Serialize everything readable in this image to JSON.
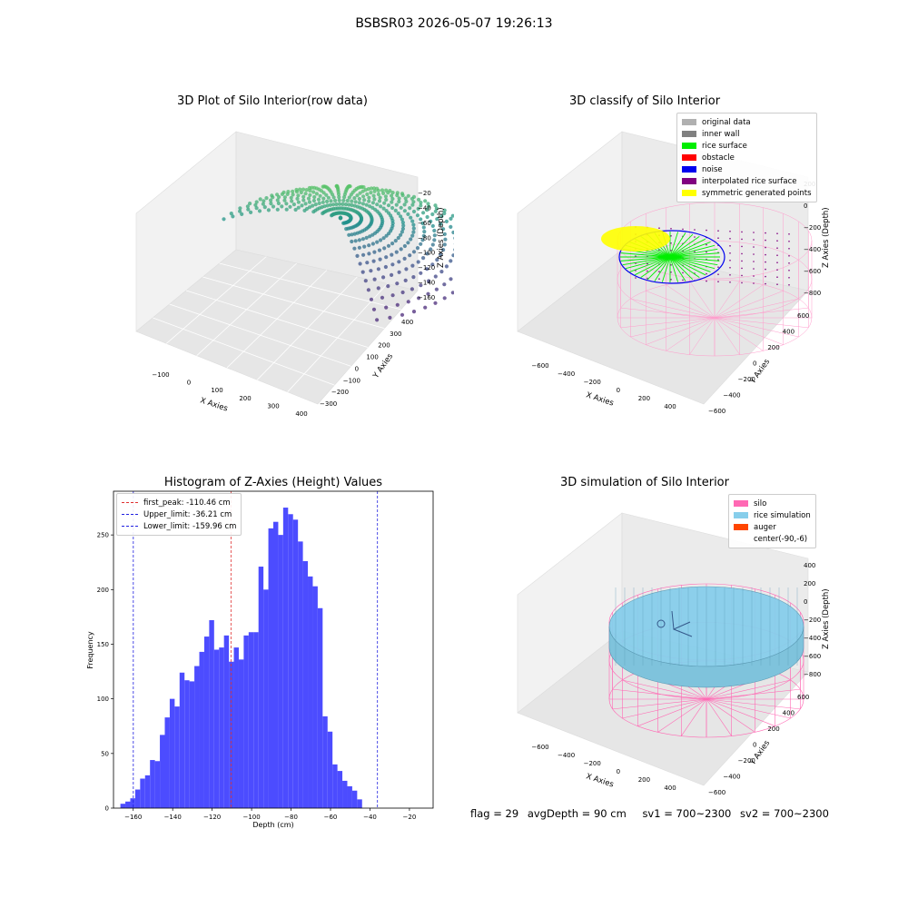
{
  "suptitle": "BSBSR03 2026-05-07 19:26:13",
  "colors": {
    "hist_bar": "#4c4cff",
    "first_peak": "#e03030",
    "limit": "#2020e0",
    "silo": "#ff69b4",
    "rice_sim": "#87ceeb",
    "auger": "#ff4500",
    "raw_low": "#4b2a7a",
    "raw_high": "#e8e820"
  },
  "panel_raw": {
    "title": "3D Plot of Silo Interior(row data)",
    "xlabel": "X Axies",
    "ylabel": "Y Axies",
    "zlabel": "Z Axies (Depth)",
    "xticks": [
      "−100",
      "0",
      "100",
      "200",
      "300",
      "400"
    ],
    "yticks": [
      "−300",
      "−200",
      "−100",
      "0",
      "100",
      "200",
      "300",
      "400"
    ],
    "zticks": [
      "−20",
      "−40",
      "−60",
      "−80",
      "−100",
      "−120",
      "−140",
      "−160"
    ]
  },
  "panel_classify": {
    "title": "3D classify of Silo Interior",
    "xlabel": "X Axies",
    "ylabel": "Y Axies",
    "zlabel": "Z Axies (Depth)",
    "xticks": [
      "−600",
      "−400",
      "−200",
      "0",
      "200",
      "400"
    ],
    "yticks": [
      "−600",
      "−400",
      "−200",
      "0",
      "200",
      "400",
      "600"
    ],
    "zticks": [
      "200",
      "0",
      "−200",
      "−400",
      "−600",
      "−800"
    ],
    "legend": [
      {
        "label": "original data",
        "color": "#b0b0b0"
      },
      {
        "label": "inner wall",
        "color": "#808080"
      },
      {
        "label": "rice surface",
        "color": "#00ee00"
      },
      {
        "label": "obstacle",
        "color": "#ff0000"
      },
      {
        "label": "noise",
        "color": "#0000ee"
      },
      {
        "label": "interpolated rice surface",
        "color": "#800080"
      },
      {
        "label": "symmetric generated points",
        "color": "#ffff00"
      }
    ]
  },
  "panel_sim": {
    "title": "3D simulation of Silo Interior",
    "xlabel": "X Axies",
    "ylabel": "Y Axies",
    "zlabel": "Z Axies (Depth)",
    "xticks": [
      "−600",
      "−400",
      "−200",
      "0",
      "200",
      "400"
    ],
    "yticks": [
      "−600",
      "−400",
      "−200",
      "0",
      "200",
      "400",
      "600"
    ],
    "zticks": [
      "400",
      "200",
      "0",
      "−200",
      "−400",
      "−600",
      "−800"
    ],
    "legend": [
      {
        "label": "silo",
        "color": "#ff69b4"
      },
      {
        "label": "rice simulation",
        "color": "#87ceeb"
      },
      {
        "label": "auger",
        "color": "#ff4500"
      },
      {
        "label": "center(-90,-6)",
        "color": ""
      }
    ]
  },
  "chart_data": {
    "type": "bar",
    "title": "Histogram of Z-Axies (Height) Values",
    "xlabel": "Depth (cm)",
    "ylabel": "Frequency",
    "xlim": [
      -170,
      -8
    ],
    "ylim": [
      0,
      290
    ],
    "xticks": [
      -160,
      -140,
      -120,
      -100,
      -80,
      -60,
      -40,
      -20
    ],
    "yticks": [
      0,
      50,
      100,
      150,
      200,
      250
    ],
    "xtick_labels": [
      "−160",
      "−140",
      "−120",
      "−100",
      "−80",
      "−60",
      "−40",
      "−20"
    ],
    "ytick_labels": [
      "0",
      "50",
      "100",
      "150",
      "200",
      "250"
    ],
    "bin_start": -166.5,
    "bin_width": 2.5,
    "values": [
      4,
      6,
      9,
      17,
      27,
      30,
      44,
      43,
      67,
      83,
      100,
      93,
      124,
      117,
      116,
      130,
      143,
      157,
      172,
      145,
      147,
      158,
      134,
      147,
      136,
      158,
      161,
      161,
      221,
      200,
      256,
      262,
      250,
      275,
      269,
      264,
      244,
      226,
      212,
      203,
      183,
      84,
      70,
      40,
      34,
      25,
      20,
      16,
      8
    ],
    "lines": [
      {
        "name": "first_peak: -110.46 cm",
        "x": -110.46,
        "color": "#e03030"
      },
      {
        "name": "Upper_limit: -36.21 cm",
        "x": -36.21,
        "color": "#2020e0"
      },
      {
        "name": "Lower_limit: -159.96 cm",
        "x": -159.96,
        "color": "#2020e0"
      }
    ],
    "legend_position": "top-left"
  },
  "footer": {
    "flag": "flag = 29",
    "avg": "avgDepth = 90 cm",
    "sv1": "sv1 = 700~2300",
    "sv2": "sv2 = 700~2300"
  }
}
